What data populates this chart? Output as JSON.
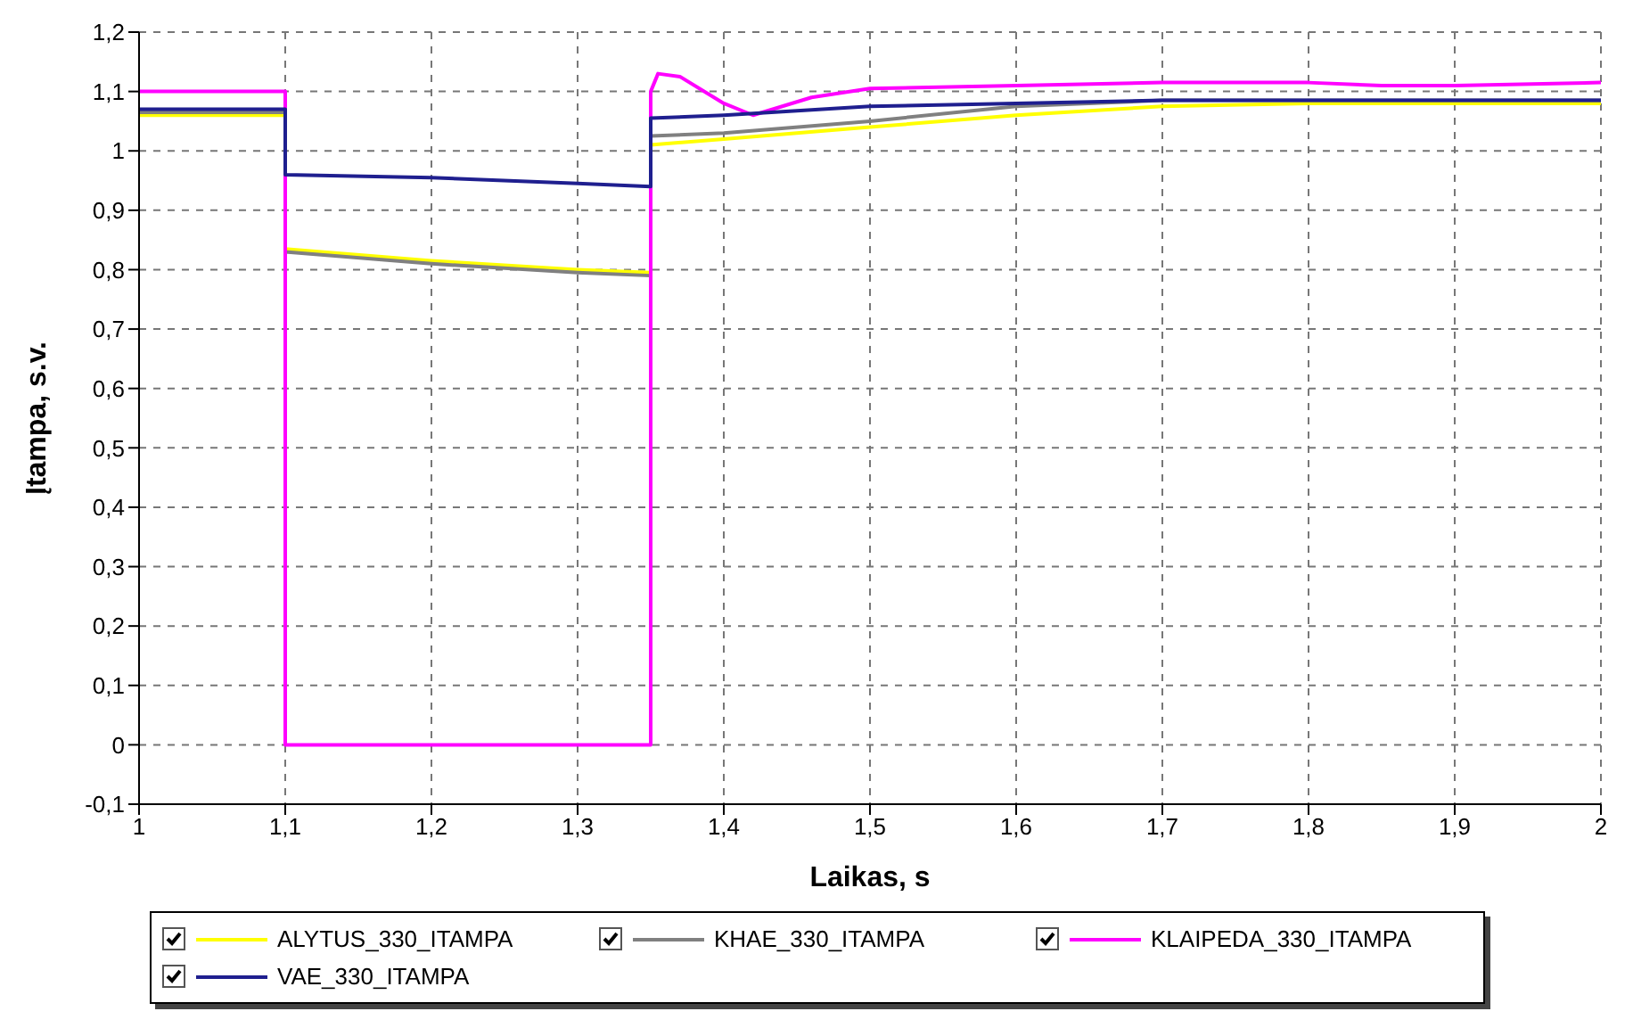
{
  "chart_data": {
    "type": "line",
    "xlabel": "Laikas, s",
    "ylabel": "Įtampa, s.v.",
    "xlim": [
      1,
      2
    ],
    "ylim": [
      -0.1,
      1.2
    ],
    "xticks": [
      1,
      {
        "value": 1.1,
        "label": "1,1"
      },
      {
        "value": 1.2,
        "label": "1,2"
      },
      {
        "value": 1.3,
        "label": "1,3"
      },
      {
        "value": 1.4,
        "label": "1,4"
      },
      {
        "value": 1.5,
        "label": "1,5"
      },
      {
        "value": 1.6,
        "label": "1,6"
      },
      {
        "value": 1.7,
        "label": "1,7"
      },
      {
        "value": 1.8,
        "label": "1,8"
      },
      {
        "value": 1.9,
        "label": "1,9"
      },
      2
    ],
    "yticks": [
      {
        "value": -0.1,
        "label": "-0,1"
      },
      0,
      {
        "value": 0.1,
        "label": "0,1"
      },
      {
        "value": 0.2,
        "label": "0,2"
      },
      {
        "value": 0.3,
        "label": "0,3"
      },
      {
        "value": 0.4,
        "label": "0,4"
      },
      {
        "value": 0.5,
        "label": "0,5"
      },
      {
        "value": 0.6,
        "label": "0,6"
      },
      {
        "value": 0.7,
        "label": "0,7"
      },
      {
        "value": 0.8,
        "label": "0,8"
      },
      {
        "value": 0.9,
        "label": "0,9"
      },
      1,
      {
        "value": 1.1,
        "label": "1,1"
      },
      {
        "value": 1.2,
        "label": "1,2"
      }
    ],
    "grid": true,
    "legend": "bottom",
    "marker": "none",
    "line_style": "solid",
    "series": [
      {
        "name": "ALYTUS_330_ITAMPA",
        "color": "#ffff00",
        "x": [
          1,
          1.1,
          1.1,
          1.2,
          1.3,
          1.35,
          1.35,
          1.4,
          1.5,
          1.6,
          1.7,
          1.8,
          2
        ],
        "values": [
          1.06,
          1.06,
          0.835,
          0.815,
          0.8,
          0.795,
          1.01,
          1.02,
          1.04,
          1.06,
          1.075,
          1.08,
          1.08
        ]
      },
      {
        "name": "KHAE_330_ITAMPA",
        "color": "#808080",
        "x": [
          1,
          1.1,
          1.1,
          1.2,
          1.3,
          1.35,
          1.35,
          1.4,
          1.5,
          1.6,
          1.7,
          1.8,
          2
        ],
        "values": [
          1.065,
          1.065,
          0.83,
          0.81,
          0.795,
          0.79,
          1.025,
          1.03,
          1.05,
          1.075,
          1.085,
          1.085,
          1.085
        ]
      },
      {
        "name": "KLAIPEDA_330_ITAMPA",
        "color": "#ff00ff",
        "x": [
          1,
          1.1,
          1.1,
          1.35,
          1.35,
          1.355,
          1.37,
          1.4,
          1.42,
          1.46,
          1.5,
          1.6,
          1.7,
          1.8,
          1.85,
          1.9,
          2
        ],
        "values": [
          1.1,
          1.1,
          0,
          0,
          1.1,
          1.13,
          1.125,
          1.08,
          1.06,
          1.09,
          1.105,
          1.11,
          1.115,
          1.115,
          1.11,
          1.11,
          1.115
        ]
      },
      {
        "name": "VAE_330_ITAMPA",
        "color": "#1f1f8f",
        "x": [
          1,
          1.1,
          1.1,
          1.2,
          1.3,
          1.35,
          1.35,
          1.4,
          1.5,
          1.6,
          1.7,
          1.8,
          2
        ],
        "values": [
          1.07,
          1.07,
          0.96,
          0.955,
          0.945,
          0.94,
          1.055,
          1.06,
          1.075,
          1.08,
          1.085,
          1.085,
          1.085
        ]
      }
    ]
  }
}
